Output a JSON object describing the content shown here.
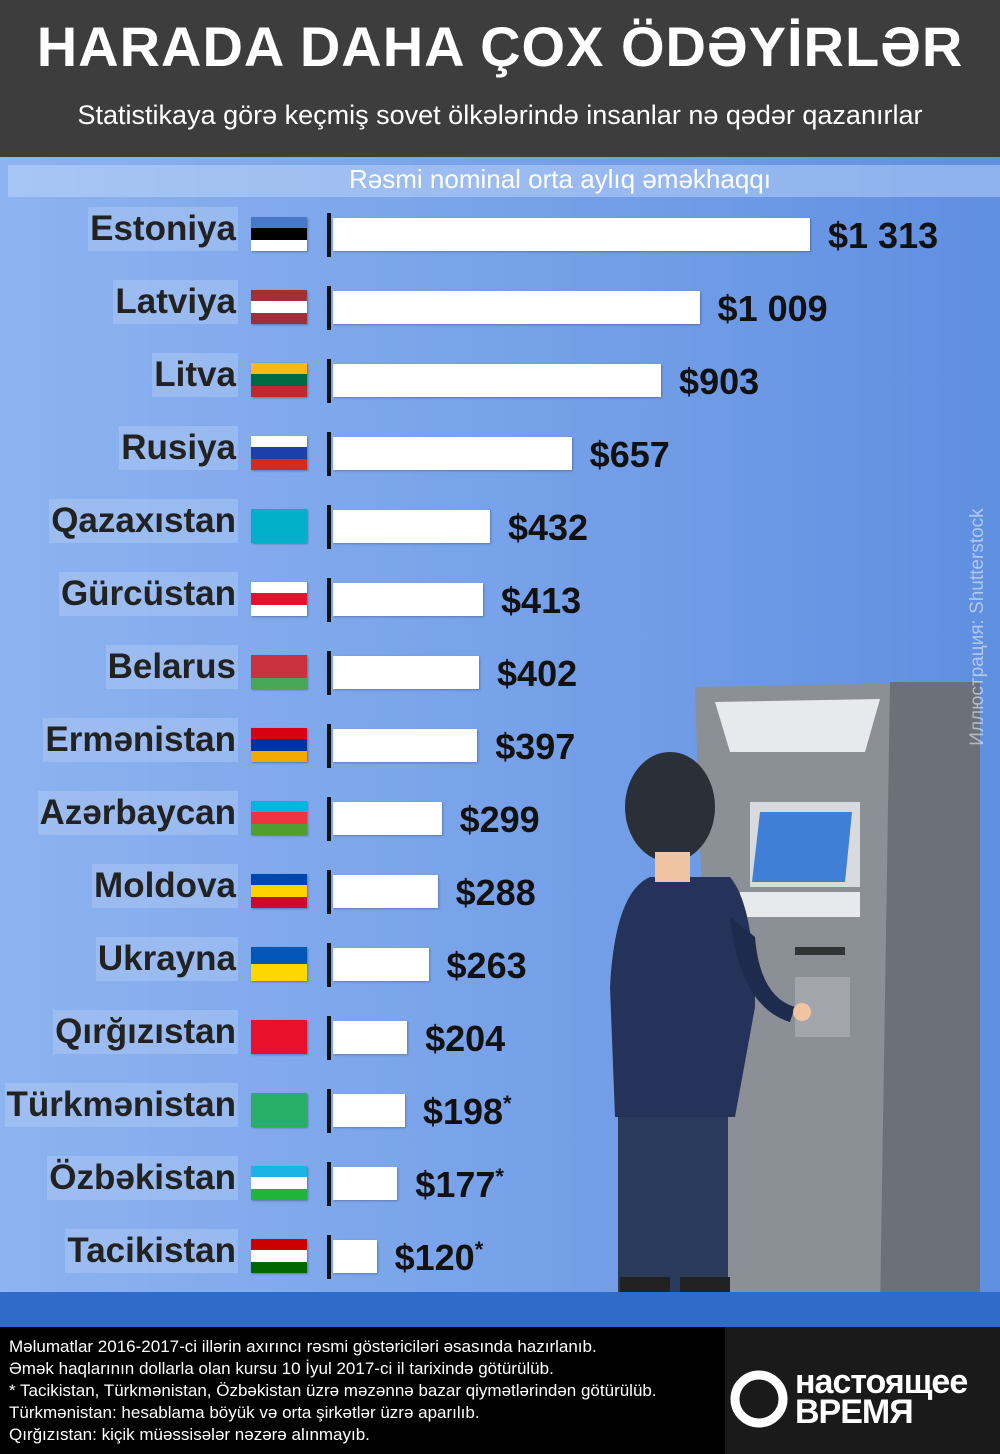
{
  "header": {
    "title": "HARADA DAHA ÇOX ÖDƏYİRLƏR",
    "subtitle": "Statistikaya görə keçmiş sovet ölkələrində insanlar nə qədər qazanırlar"
  },
  "chart_data": {
    "type": "bar",
    "orientation": "horizontal",
    "xlabel": "Rəsmi nominal orta aylıq əməkhaqqı",
    "categories": [
      "Estoniya",
      "Latviya",
      "Litva",
      "Rusiya",
      "Qazaxıstan",
      "Gürcüstan",
      "Belarus",
      "Ermənistan",
      "Azərbaycan",
      "Moldova",
      "Ukrayna",
      "Qırğızıstan",
      "Türkmənistan",
      "Özbəkistan",
      "Tacikistan"
    ],
    "values": [
      1313,
      1009,
      903,
      657,
      432,
      413,
      402,
      397,
      299,
      288,
      263,
      204,
      198,
      177,
      120
    ],
    "labels": [
      "$1 313",
      "$1 009",
      "$903",
      "$657",
      "$432",
      "$413",
      "$402",
      "$397",
      "$299",
      "$288",
      "$263",
      "$204",
      "$198",
      "$177",
      "$120"
    ],
    "asterisk": [
      false,
      false,
      false,
      false,
      false,
      false,
      false,
      false,
      false,
      false,
      false,
      false,
      true,
      true,
      true
    ],
    "asterisk_mark": "*",
    "bar_color": "#ffffff",
    "grid": false
  },
  "flags": [
    [
      "#4a78c8",
      "#000000",
      "#ffffff"
    ],
    [
      "#9e3039",
      "#ffffff",
      "#9e3039"
    ],
    [
      "#fdb913",
      "#006a44",
      "#c1272d"
    ],
    [
      "#ffffff",
      "#1c3fa8",
      "#d52b1e"
    ],
    [
      "#00afca",
      "#00afca"
    ],
    [
      "#ffffff",
      "#e8112d",
      "#ffffff"
    ],
    [
      "#c8313e",
      "#c8313e",
      "#4aa657"
    ],
    [
      "#d90012",
      "#0033a0",
      "#f2a800"
    ],
    [
      "#00b5e2",
      "#ef3340",
      "#509e2f"
    ],
    [
      "#0046ae",
      "#ffd200",
      "#cc092f"
    ],
    [
      "#0057b7",
      "#ffd700"
    ],
    [
      "#e8112d",
      "#e8112d"
    ],
    [
      "#28ae66",
      "#28ae66"
    ],
    [
      "#1eb3e5",
      "#ffffff",
      "#1eb53a"
    ],
    [
      "#cc0000",
      "#ffffff",
      "#006600"
    ]
  ],
  "watermark": "Иллюстрация: Shutterstock",
  "footer": {
    "lines": [
      "Məlumatlar 2016-2017-ci illərin axırıncı rəsmi göstəriciləri əsasında hazırlanıb.",
      "Əmək haqlarının dollarla olan kursu 10 İyul 2017-ci il tarixində götürülüb.",
      "* Tacikistan, Türkmənistan, Özbəkistan üzrə məzənnə bazar qiymətlərindən götürülüb. Türkmənistan: hesablama böyük və orta şirkətlər üzrə aparılıb.",
      "Qırğızıstan: kiçik müəssisələr nəzərə alınmayıb."
    ]
  },
  "logo": {
    "line1": "настоящее",
    "line2": "время"
  }
}
